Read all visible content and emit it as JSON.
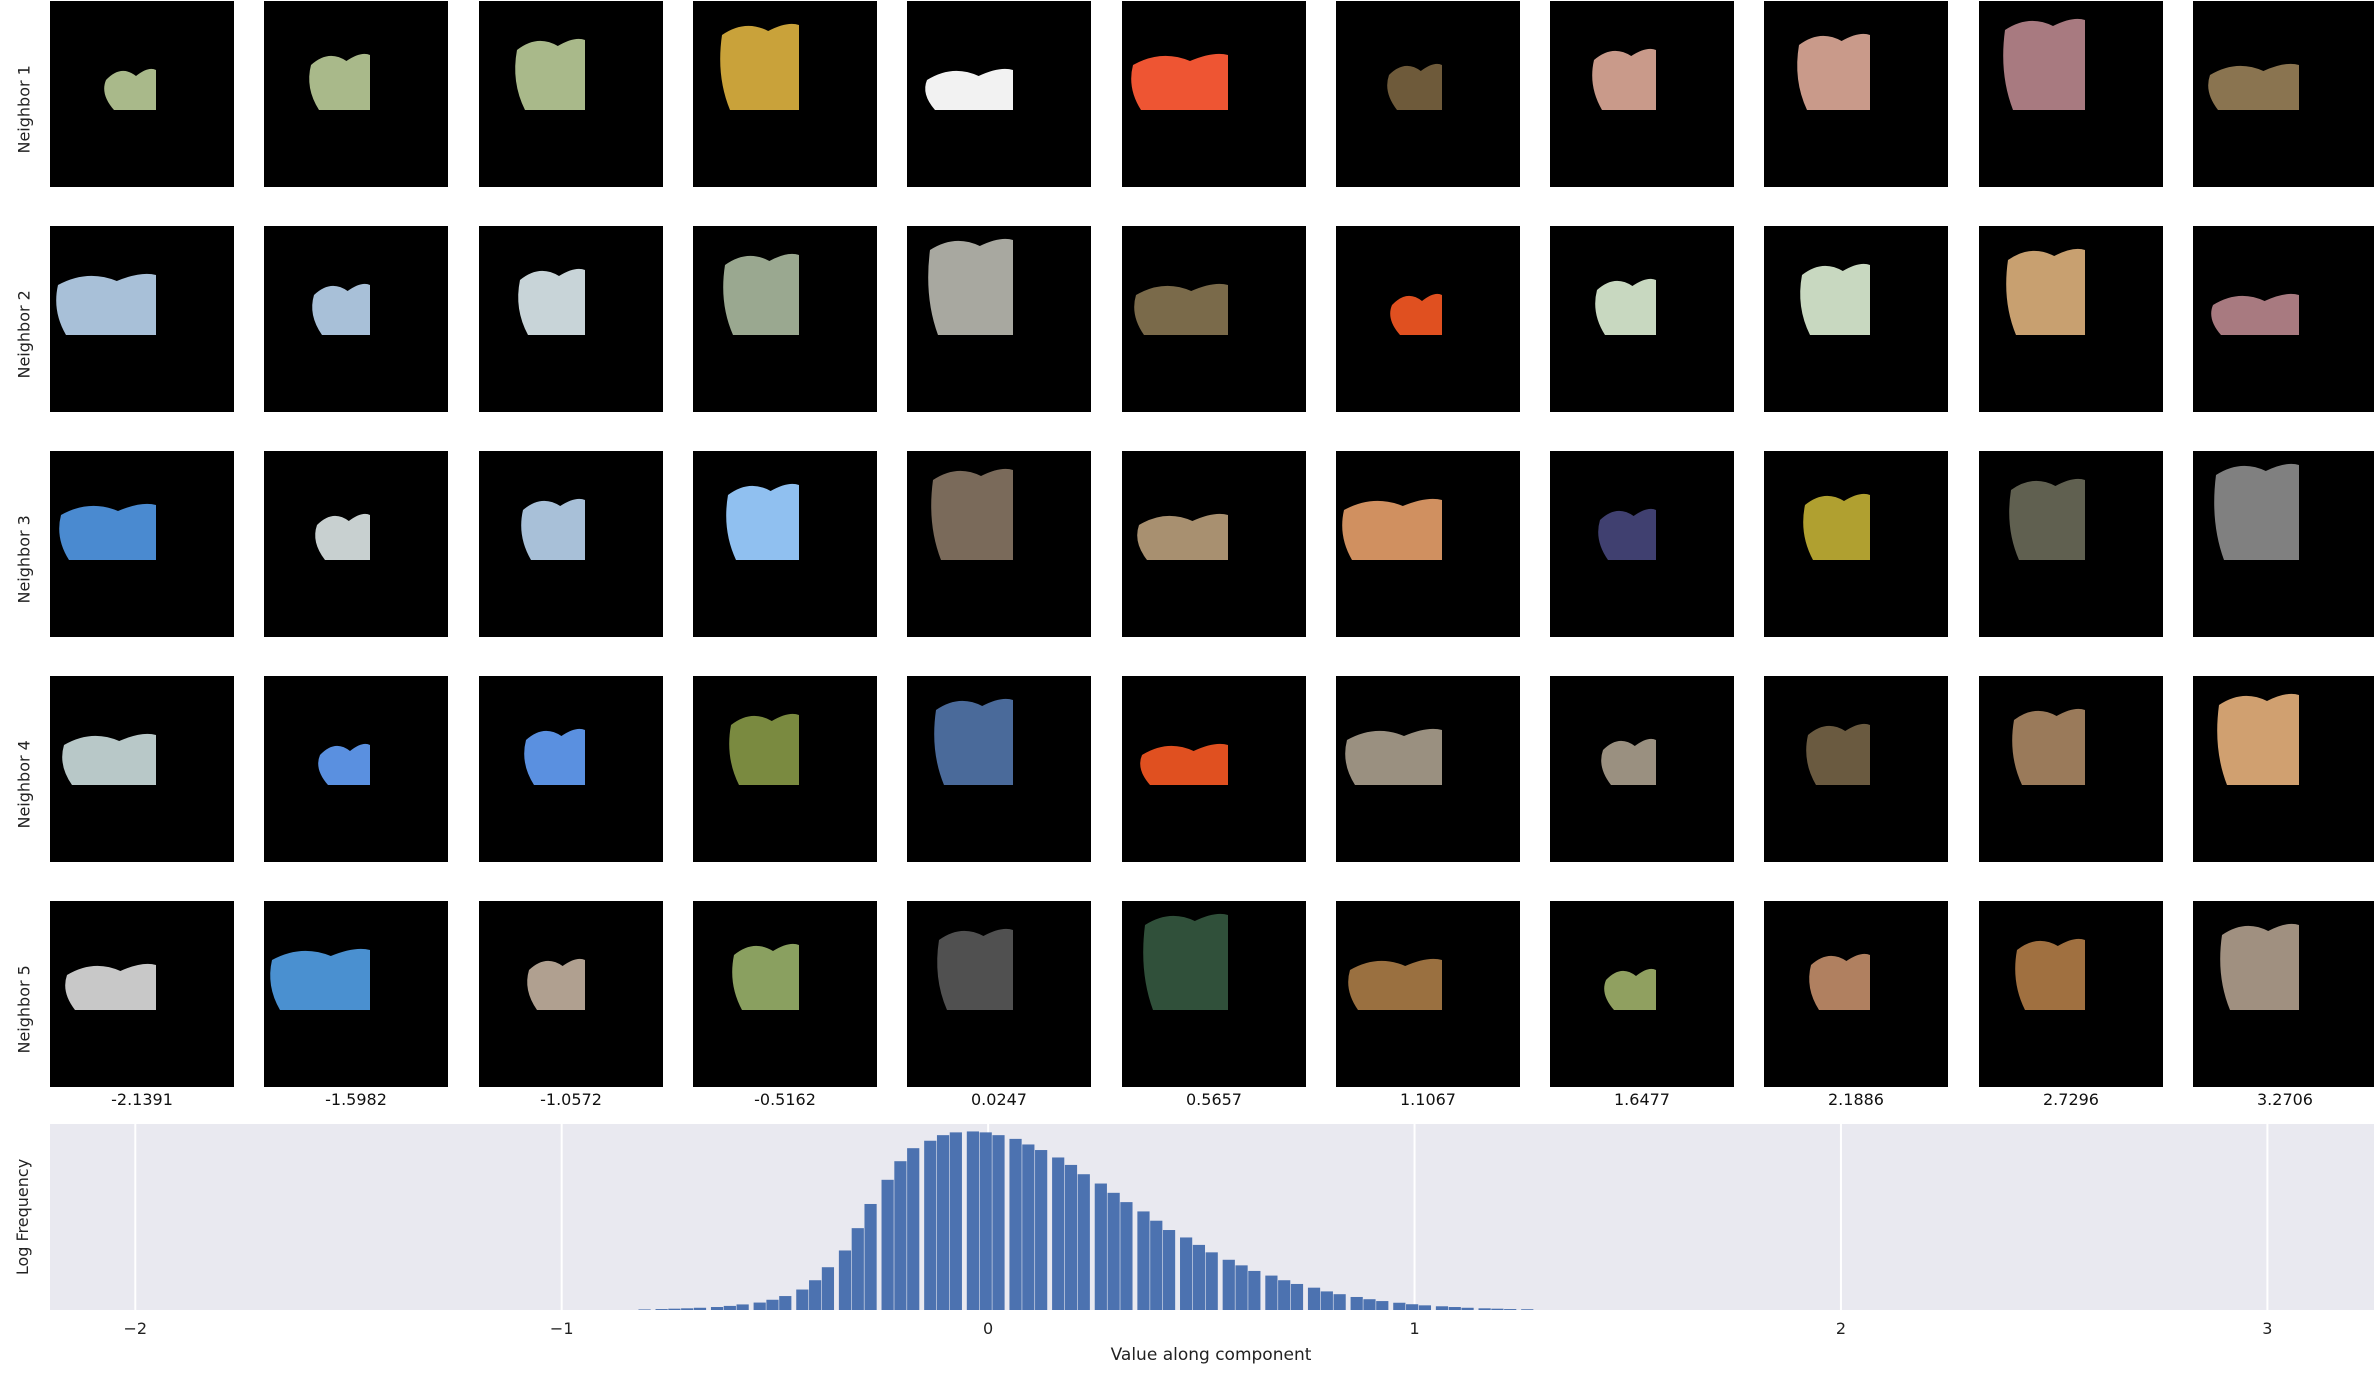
{
  "row_labels": [
    "Neighbor 1",
    "Neighbor 2",
    "Neighbor 3",
    "Neighbor 4",
    "Neighbor 5"
  ],
  "column_values": [
    "-2.1391",
    "-1.5982",
    "-1.0572",
    "-0.5162",
    "0.0247",
    "0.5657",
    "1.1067",
    "1.6477",
    "2.1886",
    "2.7296",
    "3.2706"
  ],
  "tile_colors": [
    [
      "#a9b98a",
      "#a9b98a",
      "#a9b98a",
      "#c9a23a",
      "#f2f2f2",
      "#ee5533",
      "#6e5a3a",
      "#c99a8a",
      "#c99a8a",
      "#a87a80",
      "#8a7450"
    ],
    [
      "#a8c0d8",
      "#a8c0d8",
      "#c8d4d8",
      "#9aa890",
      "#a8a8a0",
      "#7a6a4a",
      "#e05020",
      "#c8d8c0",
      "#c8d8c0",
      "#c8a070",
      "#a87a80"
    ],
    [
      "#4a8ad0",
      "#c8d0d0",
      "#a8c0d8",
      "#90c0f0",
      "#7a6a5a",
      "#a89070",
      "#d09060",
      "#404070",
      "#b0a030",
      "#606050",
      "#808080"
    ],
    [
      "#b8c8c8",
      "#5a90e0",
      "#5a90e0",
      "#7a8a40",
      "#4a6a9a",
      "#e05020",
      "#9a9080",
      "#9a9080",
      "#6a5a40",
      "#9a7a5a",
      "#d0a070"
    ],
    [
      "#c8c8c8",
      "#4a90d0",
      "#b0a090",
      "#8aa060",
      "#505050",
      "#30503a",
      "#9a7040",
      "#90a060",
      "#b08060",
      "#a07040",
      "#a09080"
    ]
  ],
  "chart_data": {
    "type": "bar",
    "xlabel": "Value along component",
    "ylabel": "Log Frequency",
    "xlim": [
      -2.2,
      3.25
    ],
    "ylim": [
      0,
      1
    ],
    "grid": true,
    "xticks": [
      -2,
      -1,
      0,
      1,
      2,
      3
    ],
    "xtick_labels": [
      "−2",
      "−1",
      "0",
      "1",
      "2",
      "3"
    ],
    "bin_width": 0.0333,
    "bins": [
      [
        -0.82,
        0.003
      ],
      [
        -0.78,
        0.005
      ],
      [
        -0.75,
        0.007
      ],
      [
        -0.72,
        0.009
      ],
      [
        -0.69,
        0.012
      ],
      [
        -0.65,
        0.016
      ],
      [
        -0.62,
        0.022
      ],
      [
        -0.59,
        0.03
      ],
      [
        -0.55,
        0.04
      ],
      [
        -0.52,
        0.055
      ],
      [
        -0.49,
        0.075
      ],
      [
        -0.45,
        0.11
      ],
      [
        -0.42,
        0.16
      ],
      [
        -0.39,
        0.23
      ],
      [
        -0.35,
        0.32
      ],
      [
        -0.32,
        0.44
      ],
      [
        -0.29,
        0.57
      ],
      [
        -0.25,
        0.7
      ],
      [
        -0.22,
        0.8
      ],
      [
        -0.19,
        0.87
      ],
      [
        -0.15,
        0.91
      ],
      [
        -0.12,
        0.94
      ],
      [
        -0.09,
        0.955
      ],
      [
        -0.05,
        0.96
      ],
      [
        -0.02,
        0.955
      ],
      [
        0.01,
        0.94
      ],
      [
        0.05,
        0.92
      ],
      [
        0.08,
        0.89
      ],
      [
        0.11,
        0.86
      ],
      [
        0.15,
        0.82
      ],
      [
        0.18,
        0.78
      ],
      [
        0.21,
        0.73
      ],
      [
        0.25,
        0.68
      ],
      [
        0.28,
        0.63
      ],
      [
        0.31,
        0.58
      ],
      [
        0.35,
        0.53
      ],
      [
        0.38,
        0.48
      ],
      [
        0.41,
        0.43
      ],
      [
        0.45,
        0.39
      ],
      [
        0.48,
        0.35
      ],
      [
        0.51,
        0.31
      ],
      [
        0.55,
        0.27
      ],
      [
        0.58,
        0.24
      ],
      [
        0.61,
        0.21
      ],
      [
        0.65,
        0.185
      ],
      [
        0.68,
        0.16
      ],
      [
        0.71,
        0.14
      ],
      [
        0.75,
        0.12
      ],
      [
        0.78,
        0.1
      ],
      [
        0.81,
        0.085
      ],
      [
        0.85,
        0.07
      ],
      [
        0.88,
        0.058
      ],
      [
        0.91,
        0.048
      ],
      [
        0.95,
        0.039
      ],
      [
        0.98,
        0.031
      ],
      [
        1.01,
        0.025
      ],
      [
        1.05,
        0.02
      ],
      [
        1.08,
        0.016
      ],
      [
        1.11,
        0.012
      ],
      [
        1.15,
        0.009
      ],
      [
        1.18,
        0.007
      ],
      [
        1.21,
        0.005
      ],
      [
        1.25,
        0.004
      ]
    ]
  }
}
